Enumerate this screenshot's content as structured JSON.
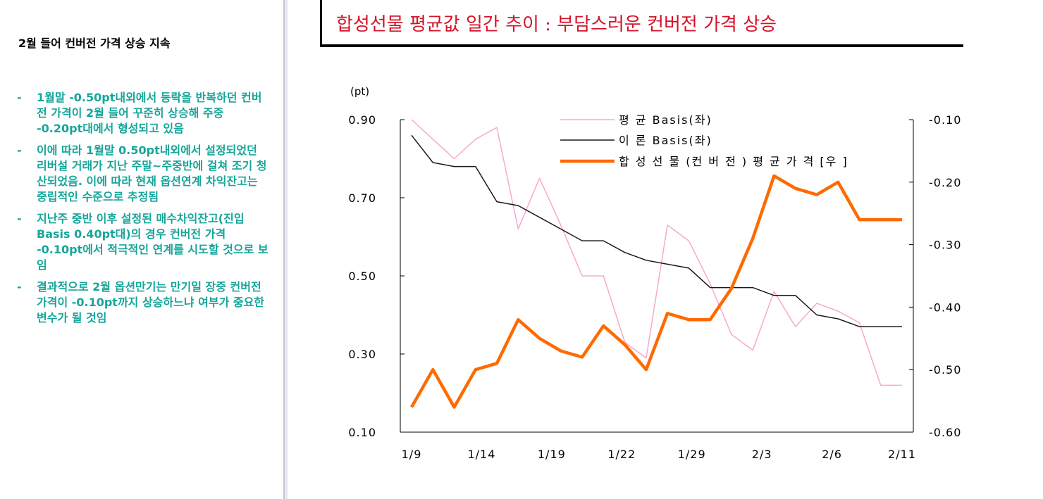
{
  "sidebar": {
    "heading": "2월 들어 컨버전 가격 상승 지속",
    "bullets": [
      "1월말 -0.50pt내외에서 등락을 반복하던 컨버전 가격이 2월 들어 꾸준히 상승해 주중 -0.20pt대에서 형성되고 있음",
      "이에 따라 1월말 0.50pt내외에서 설정되었던 리버설 거래가 지난 주말~주중반에 걸쳐 조기 청산되었음. 이에 따라 현재 옵션연계 차익잔고는 중립적인 수준으로 추정됨",
      "지난주 중반 이후 설정된 매수차익잔고(진입Basis 0.40pt대)의 경우 컨버전 가격 -0.10pt에서 적극적인 연계를 시도할 것으로 보임",
      "결과적으로 2월 옵션만기는 만기일 장중 컨버전 가격이 -0.10pt까지 상승하느냐 여부가 중요한 변수가 될 것임"
    ],
    "bullet_marker": "-"
  },
  "header": {
    "title": "합성선물 평균값 일간 추이 : 부담스러운 컨버전 가격 상승"
  },
  "colors": {
    "title": "#d4142a",
    "bullet_text": "#16a59a",
    "avg_basis": "#f7a8d0",
    "theory_basis": "#1a1a1a",
    "synthetic": "#ff6a00"
  },
  "chart_data": {
    "type": "line",
    "unit_label": "(pt)",
    "x_tick_labels": [
      "1/9",
      "1/14",
      "1/19",
      "1/22",
      "1/29",
      "2/3",
      "2/6",
      "2/11"
    ],
    "n_points": 24,
    "y_left": {
      "min": 0.1,
      "max": 0.9,
      "ticks": [
        "0.90",
        "0.70",
        "0.50",
        "0.30",
        "0.10"
      ]
    },
    "y_right": {
      "min": -0.6,
      "max": -0.1,
      "ticks": [
        "-0.10",
        "-0.20",
        "-0.30",
        "-0.40",
        "-0.50",
        "-0.60"
      ]
    },
    "series": [
      {
        "name": "평 균 Basis(좌)",
        "axis": "left",
        "color_key": "avg_basis",
        "values": [
          0.9,
          0.85,
          0.8,
          0.85,
          0.88,
          0.62,
          0.75,
          0.63,
          0.5,
          0.5,
          0.33,
          0.29,
          0.63,
          0.59,
          0.48,
          0.35,
          0.31,
          0.46,
          0.37,
          0.43,
          0.41,
          0.38,
          0.22,
          0.22
        ]
      },
      {
        "name": "이 론 Basis(좌)",
        "axis": "left",
        "color_key": "theory_basis",
        "values": [
          0.86,
          0.79,
          0.78,
          0.78,
          0.69,
          0.68,
          0.65,
          0.62,
          0.59,
          0.59,
          0.56,
          0.54,
          0.53,
          0.52,
          0.47,
          0.47,
          0.47,
          0.45,
          0.45,
          0.4,
          0.39,
          0.37,
          0.37,
          0.37
        ]
      },
      {
        "name": "합 성 선 물 (컨 버 전 ) 평 균 가 격 [우 ]",
        "axis": "right",
        "color_key": "synthetic",
        "values": [
          -0.56,
          -0.5,
          -0.56,
          -0.5,
          -0.49,
          -0.42,
          -0.45,
          -0.47,
          -0.48,
          -0.43,
          -0.46,
          -0.5,
          -0.41,
          -0.42,
          -0.42,
          -0.37,
          -0.29,
          -0.19,
          -0.21,
          -0.22,
          -0.2,
          -0.26,
          -0.26,
          -0.26
        ]
      }
    ]
  }
}
